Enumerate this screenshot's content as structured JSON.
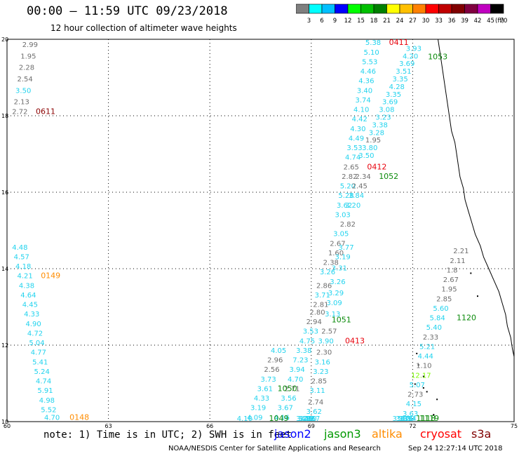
{
  "header": {
    "title": "00:00 – 11:59 UTC 09/23/2018",
    "subtitle": "12 hour collection of altimeter wave heights"
  },
  "colorbar": {
    "unit": "(ft)",
    "bins": [
      {
        "label": "3",
        "color": "#7f7f7f"
      },
      {
        "label": "6",
        "color": "#00ffff"
      },
      {
        "label": "9",
        "color": "#00bfff"
      },
      {
        "label": "12",
        "color": "#0000ff"
      },
      {
        "label": "15",
        "color": "#00ff00"
      },
      {
        "label": "18",
        "color": "#00c000"
      },
      {
        "label": "21",
        "color": "#008000"
      },
      {
        "label": "24",
        "color": "#ffff00"
      },
      {
        "label": "27",
        "color": "#ffc000"
      },
      {
        "label": "30",
        "color": "#ff8000"
      },
      {
        "label": "33",
        "color": "#ff0000"
      },
      {
        "label": "36",
        "color": "#c00000"
      },
      {
        "label": "39",
        "color": "#800000"
      },
      {
        "label": "42",
        "color": "#800040"
      },
      {
        "label": "45",
        "color": "#c000c0"
      },
      {
        "label": "70",
        "color": "#000000"
      }
    ]
  },
  "map": {
    "lon_range": [
      60,
      75
    ],
    "lat_range": [
      10,
      20
    ],
    "lon_ticks": [
      "60",
      "63",
      "66",
      "69",
      "72",
      "75"
    ],
    "lat_ticks": [
      "10",
      "12",
      "14",
      "16",
      "18",
      "20"
    ],
    "track_colors": {
      "gray": "#6e6e6e",
      "cyan": "#22d3ee",
      "red": "#e8000b",
      "green": "#0a8a0a",
      "orange": "#ff8c00",
      "maroon": "#8b0000",
      "lightgreen": "#7cfc00"
    },
    "labels": [
      {
        "t": "2.99",
        "lon": 60.45,
        "lat": 19.8,
        "c": "gray"
      },
      {
        "t": "1.95",
        "lon": 60.4,
        "lat": 19.5,
        "c": "gray"
      },
      {
        "t": "2.28",
        "lon": 60.35,
        "lat": 19.2,
        "c": "gray"
      },
      {
        "t": "2.54",
        "lon": 60.3,
        "lat": 18.9,
        "c": "gray"
      },
      {
        "t": "3.50",
        "lon": 60.25,
        "lat": 18.6,
        "c": "cyan"
      },
      {
        "t": "2.13",
        "lon": 60.2,
        "lat": 18.3,
        "c": "gray"
      },
      {
        "t": "2.72",
        "lon": 60.15,
        "lat": 18.05,
        "c": "gray"
      },
      {
        "t": "0611",
        "lon": 60.85,
        "lat": 18.05,
        "c": "maroon"
      },
      {
        "t": "4.48",
        "lon": 60.15,
        "lat": 14.5,
        "c": "cyan"
      },
      {
        "t": "4.57",
        "lon": 60.2,
        "lat": 14.25,
        "c": "cyan"
      },
      {
        "t": "4.18",
        "lon": 60.25,
        "lat": 14.0,
        "c": "cyan"
      },
      {
        "t": "4.21",
        "lon": 60.3,
        "lat": 13.75,
        "c": "cyan"
      },
      {
        "t": "0149",
        "lon": 61.0,
        "lat": 13.75,
        "c": "orange"
      },
      {
        "t": "4.38",
        "lon": 60.35,
        "lat": 13.5,
        "c": "cyan"
      },
      {
        "t": "4.64",
        "lon": 60.4,
        "lat": 13.25,
        "c": "cyan"
      },
      {
        "t": "4.45",
        "lon": 60.45,
        "lat": 13.0,
        "c": "cyan"
      },
      {
        "t": "4.33",
        "lon": 60.5,
        "lat": 12.75,
        "c": "cyan"
      },
      {
        "t": "4.90",
        "lon": 60.55,
        "lat": 12.5,
        "c": "cyan"
      },
      {
        "t": "4.72",
        "lon": 60.6,
        "lat": 12.25,
        "c": "cyan"
      },
      {
        "t": "5.04",
        "lon": 60.65,
        "lat": 12.0,
        "c": "cyan"
      },
      {
        "t": "4.77",
        "lon": 60.7,
        "lat": 11.75,
        "c": "cyan"
      },
      {
        "t": "5.41",
        "lon": 60.75,
        "lat": 11.5,
        "c": "cyan"
      },
      {
        "t": "5.24",
        "lon": 60.8,
        "lat": 11.25,
        "c": "cyan"
      },
      {
        "t": "4.74",
        "lon": 60.85,
        "lat": 11.0,
        "c": "cyan"
      },
      {
        "t": "5.91",
        "lon": 60.9,
        "lat": 10.75,
        "c": "cyan"
      },
      {
        "t": "4.98",
        "lon": 60.95,
        "lat": 10.5,
        "c": "cyan"
      },
      {
        "t": "5.52",
        "lon": 61.0,
        "lat": 10.25,
        "c": "cyan"
      },
      {
        "t": "4.70",
        "lon": 61.1,
        "lat": 10.05,
        "c": "cyan"
      },
      {
        "t": "0148",
        "lon": 61.85,
        "lat": 10.05,
        "c": "orange"
      },
      {
        "t": "5.38",
        "lon": 70.6,
        "lat": 19.85,
        "c": "cyan"
      },
      {
        "t": "0411",
        "lon": 71.3,
        "lat": 19.85,
        "c": "red"
      },
      {
        "t": "5.10",
        "lon": 70.55,
        "lat": 19.6,
        "c": "cyan"
      },
      {
        "t": "3.93",
        "lon": 71.8,
        "lat": 19.7,
        "c": "cyan"
      },
      {
        "t": "5.53",
        "lon": 70.5,
        "lat": 19.35,
        "c": "cyan"
      },
      {
        "t": "4.20",
        "lon": 71.7,
        "lat": 19.5,
        "c": "cyan"
      },
      {
        "t": "1053",
        "lon": 72.45,
        "lat": 19.48,
        "c": "green"
      },
      {
        "t": "4.46",
        "lon": 70.45,
        "lat": 19.1,
        "c": "cyan"
      },
      {
        "t": "3.69",
        "lon": 71.6,
        "lat": 19.3,
        "c": "cyan"
      },
      {
        "t": "4.36",
        "lon": 70.4,
        "lat": 18.85,
        "c": "cyan"
      },
      {
        "t": "3.51",
        "lon": 71.5,
        "lat": 19.1,
        "c": "cyan"
      },
      {
        "t": "3.40",
        "lon": 70.35,
        "lat": 18.6,
        "c": "cyan"
      },
      {
        "t": "3.35",
        "lon": 71.4,
        "lat": 18.9,
        "c": "cyan"
      },
      {
        "t": "3.74",
        "lon": 70.3,
        "lat": 18.35,
        "c": "cyan"
      },
      {
        "t": "4.28",
        "lon": 71.3,
        "lat": 18.7,
        "c": "cyan"
      },
      {
        "t": "4.10",
        "lon": 70.25,
        "lat": 18.1,
        "c": "cyan"
      },
      {
        "t": "3.35",
        "lon": 71.2,
        "lat": 18.5,
        "c": "cyan"
      },
      {
        "t": "4.42",
        "lon": 70.2,
        "lat": 17.85,
        "c": "cyan"
      },
      {
        "t": "3.69",
        "lon": 71.1,
        "lat": 18.3,
        "c": "cyan"
      },
      {
        "t": "4.30",
        "lon": 70.15,
        "lat": 17.6,
        "c": "cyan"
      },
      {
        "t": "3.08",
        "lon": 71.0,
        "lat": 18.1,
        "c": "cyan"
      },
      {
        "t": "4.49",
        "lon": 70.1,
        "lat": 17.35,
        "c": "cyan"
      },
      {
        "t": "3.23",
        "lon": 70.9,
        "lat": 17.9,
        "c": "cyan"
      },
      {
        "t": "3.53",
        "lon": 70.05,
        "lat": 17.1,
        "c": "cyan"
      },
      {
        "t": "3.38",
        "lon": 70.8,
        "lat": 17.7,
        "c": "cyan"
      },
      {
        "t": "4.74",
        "lon": 70.0,
        "lat": 16.85,
        "c": "cyan"
      },
      {
        "t": "3.28",
        "lon": 70.7,
        "lat": 17.5,
        "c": "cyan"
      },
      {
        "t": "1.95",
        "lon": 70.6,
        "lat": 17.3,
        "c": "gray"
      },
      {
        "t": "3.80",
        "lon": 70.5,
        "lat": 17.1,
        "c": "cyan"
      },
      {
        "t": "2.65",
        "lon": 69.95,
        "lat": 16.6,
        "c": "gray"
      },
      {
        "t": "0412",
        "lon": 70.65,
        "lat": 16.6,
        "c": "red"
      },
      {
        "t": "3.50",
        "lon": 70.4,
        "lat": 16.9,
        "c": "cyan"
      },
      {
        "t": "2.82",
        "lon": 69.9,
        "lat": 16.35,
        "c": "gray"
      },
      {
        "t": "2.34",
        "lon": 70.3,
        "lat": 16.35,
        "c": "gray"
      },
      {
        "t": "1052",
        "lon": 71.0,
        "lat": 16.35,
        "c": "green"
      },
      {
        "t": "5.20",
        "lon": 69.85,
        "lat": 16.1,
        "c": "cyan"
      },
      {
        "t": "2.45",
        "lon": 70.2,
        "lat": 16.1,
        "c": "gray"
      },
      {
        "t": "5.28",
        "lon": 69.8,
        "lat": 15.85,
        "c": "cyan"
      },
      {
        "t": "3.84",
        "lon": 70.1,
        "lat": 15.85,
        "c": "cyan"
      },
      {
        "t": "3.62",
        "lon": 69.75,
        "lat": 15.6,
        "c": "cyan"
      },
      {
        "t": "3.20",
        "lon": 70.0,
        "lat": 15.6,
        "c": "cyan"
      },
      {
        "t": "3.03",
        "lon": 69.7,
        "lat": 15.35,
        "c": "cyan"
      },
      {
        "t": "2.82",
        "lon": 69.85,
        "lat": 15.1,
        "c": "gray"
      },
      {
        "t": "3.05",
        "lon": 69.65,
        "lat": 14.85,
        "c": "cyan"
      },
      {
        "t": "2.67",
        "lon": 69.55,
        "lat": 14.6,
        "c": "gray"
      },
      {
        "t": "1.60",
        "lon": 69.5,
        "lat": 14.35,
        "c": "gray"
      },
      {
        "t": "3.77",
        "lon": 69.8,
        "lat": 14.5,
        "c": "cyan"
      },
      {
        "t": "2.38",
        "lon": 69.35,
        "lat": 14.1,
        "c": "gray"
      },
      {
        "t": "3.19",
        "lon": 69.7,
        "lat": 14.25,
        "c": "cyan"
      },
      {
        "t": "3.26",
        "lon": 69.25,
        "lat": 13.85,
        "c": "cyan"
      },
      {
        "t": "3.31",
        "lon": 69.6,
        "lat": 13.95,
        "c": "cyan"
      },
      {
        "t": "2.86",
        "lon": 69.15,
        "lat": 13.5,
        "c": "gray"
      },
      {
        "t": "3.26",
        "lon": 69.55,
        "lat": 13.6,
        "c": "cyan"
      },
      {
        "t": "3.71",
        "lon": 69.1,
        "lat": 13.25,
        "c": "cyan"
      },
      {
        "t": "3.29",
        "lon": 69.5,
        "lat": 13.3,
        "c": "cyan"
      },
      {
        "t": "2.81",
        "lon": 69.05,
        "lat": 13.0,
        "c": "gray"
      },
      {
        "t": "3.09",
        "lon": 69.45,
        "lat": 13.05,
        "c": "cyan"
      },
      {
        "t": "2.80",
        "lon": 68.95,
        "lat": 12.8,
        "c": "gray"
      },
      {
        "t": "3.13",
        "lon": 69.4,
        "lat": 12.75,
        "c": "cyan"
      },
      {
        "t": "2.94",
        "lon": 68.85,
        "lat": 12.55,
        "c": "gray"
      },
      {
        "t": "1051",
        "lon": 69.6,
        "lat": 12.6,
        "c": "green"
      },
      {
        "t": "3.53",
        "lon": 68.75,
        "lat": 12.3,
        "c": "cyan"
      },
      {
        "t": "2.57",
        "lon": 69.3,
        "lat": 12.3,
        "c": "gray"
      },
      {
        "t": "4.75",
        "lon": 68.65,
        "lat": 12.05,
        "c": "cyan"
      },
      {
        "t": "3.90",
        "lon": 69.2,
        "lat": 12.05,
        "c": "cyan"
      },
      {
        "t": "0413",
        "lon": 70.0,
        "lat": 12.05,
        "c": "red"
      },
      {
        "t": "3.38",
        "lon": 68.55,
        "lat": 11.8,
        "c": "cyan"
      },
      {
        "t": "2.30",
        "lon": 69.15,
        "lat": 11.75,
        "c": "gray"
      },
      {
        "t": "7.23",
        "lon": 68.45,
        "lat": 11.55,
        "c": "cyan"
      },
      {
        "t": "3.16",
        "lon": 69.1,
        "lat": 11.5,
        "c": "cyan"
      },
      {
        "t": "3.94",
        "lon": 68.35,
        "lat": 11.3,
        "c": "cyan"
      },
      {
        "t": "3.23",
        "lon": 69.05,
        "lat": 11.25,
        "c": "cyan"
      },
      {
        "t": "4.70",
        "lon": 68.3,
        "lat": 11.05,
        "c": "cyan"
      },
      {
        "t": "2.85",
        "lon": 69.0,
        "lat": 11.0,
        "c": "gray"
      },
      {
        "t": "2.71",
        "lon": 68.2,
        "lat": 10.8,
        "c": "gray"
      },
      {
        "t": "3.11",
        "lon": 68.95,
        "lat": 10.75,
        "c": "cyan"
      },
      {
        "t": "3.56",
        "lon": 68.1,
        "lat": 10.55,
        "c": "cyan"
      },
      {
        "t": "3.67",
        "lon": 68.0,
        "lat": 10.3,
        "c": "cyan"
      },
      {
        "t": "2.74",
        "lon": 68.9,
        "lat": 10.45,
        "c": "gray"
      },
      {
        "t": "4.16",
        "lon": 67.9,
        "lat": 10.05,
        "c": "cyan"
      },
      {
        "t": "3.62",
        "lon": 68.85,
        "lat": 10.2,
        "c": "cyan"
      }
    ],
    "labels_south": [
      {
        "t": "4.05",
        "lon": 67.8,
        "lat": 11.8,
        "c": "cyan"
      },
      {
        "t": "2.96",
        "lon": 67.7,
        "lat": 11.55,
        "c": "gray"
      },
      {
        "t": "2.56",
        "lon": 67.6,
        "lat": 11.3,
        "c": "gray"
      },
      {
        "t": "3.73",
        "lon": 67.5,
        "lat": 11.05,
        "c": "cyan"
      },
      {
        "t": "3.61",
        "lon": 67.4,
        "lat": 10.8,
        "c": "cyan"
      },
      {
        "t": "1050",
        "lon": 68.0,
        "lat": 10.8,
        "c": "green"
      },
      {
        "t": "4.33",
        "lon": 67.3,
        "lat": 10.55,
        "c": "cyan"
      },
      {
        "t": "3.19",
        "lon": 67.2,
        "lat": 10.3,
        "c": "cyan"
      },
      {
        "t": "4.09",
        "lon": 67.1,
        "lat": 10.05,
        "c": "cyan"
      }
    ],
    "labels_east": [
      {
        "t": "2.21",
        "lon": 73.2,
        "lat": 14.4,
        "c": "gray"
      },
      {
        "t": "2.11",
        "lon": 73.1,
        "lat": 14.15,
        "c": "gray"
      },
      {
        "t": "1.8",
        "lon": 73.0,
        "lat": 13.9,
        "c": "gray"
      },
      {
        "t": "2.67",
        "lon": 72.9,
        "lat": 13.65,
        "c": "gray"
      },
      {
        "t": "1.95",
        "lon": 72.85,
        "lat": 13.4,
        "c": "gray"
      },
      {
        "t": "2.85",
        "lon": 72.7,
        "lat": 13.15,
        "c": "gray"
      },
      {
        "t": "5.60",
        "lon": 72.6,
        "lat": 12.9,
        "c": "cyan"
      },
      {
        "t": "5.84",
        "lon": 72.5,
        "lat": 12.65,
        "c": "cyan"
      },
      {
        "t": "1120",
        "lon": 73.3,
        "lat": 12.65,
        "c": "green"
      },
      {
        "t": "5.40",
        "lon": 72.4,
        "lat": 12.4,
        "c": "cyan"
      },
      {
        "t": "2.33",
        "lon": 72.3,
        "lat": 12.15,
        "c": "gray"
      },
      {
        "t": "5.21",
        "lon": 72.2,
        "lat": 11.9,
        "c": "cyan"
      },
      {
        "t": "4.44",
        "lon": 72.15,
        "lat": 11.65,
        "c": "cyan"
      },
      {
        "t": "1.10",
        "lon": 72.1,
        "lat": 11.4,
        "c": "gray"
      },
      {
        "t": "12.17",
        "lon": 71.95,
        "lat": 11.15,
        "c": "lightgreen"
      },
      {
        "t": "5.07",
        "lon": 71.9,
        "lat": 10.9,
        "c": "cyan"
      },
      {
        "t": "2.73",
        "lon": 71.85,
        "lat": 10.65,
        "c": "gray"
      },
      {
        "t": "4.15",
        "lon": 71.8,
        "lat": 10.4,
        "c": "cyan"
      },
      {
        "t": "3.63",
        "lon": 71.7,
        "lat": 10.15,
        "c": "cyan"
      },
      {
        "t": "3.94",
        "lon": 71.65,
        "lat": 9.9,
        "c": "cyan"
      },
      {
        "t": "3.20",
        "lon": 71.6,
        "lat": 9.65,
        "c": "cyan"
      },
      {
        "t": "5.76",
        "lon": 71.55,
        "lat": 9.4,
        "c": "cyan"
      },
      {
        "t": "3.81",
        "lon": 71.5,
        "lat": 9.15,
        "c": "cyan"
      },
      {
        "t": "1119",
        "lon": 72.2,
        "lat": 9.15,
        "c": "green"
      },
      {
        "t": "3.13",
        "lon": 71.4,
        "lat": 8.95,
        "c": "cyan"
      },
      {
        "t": "1118",
        "lon": 72.1,
        "lat": 8.95,
        "c": "green"
      }
    ],
    "labels_bottom": [
      {
        "t": "4.10",
        "lon": 66.8,
        "lat": 8.95,
        "c": "cyan"
      },
      {
        "t": "1049",
        "lon": 67.75,
        "lat": 8.95,
        "c": "green"
      },
      {
        "t": "4.57",
        "lon": 68.8,
        "lat": 9.95,
        "c": "cyan"
      },
      {
        "t": "4.00",
        "lon": 68.7,
        "lat": 9.7,
        "c": "cyan"
      },
      {
        "t": "3.92",
        "lon": 68.65,
        "lat": 9.45,
        "c": "cyan"
      },
      {
        "t": "3.29",
        "lon": 68.6,
        "lat": 9.2,
        "c": "cyan"
      },
      {
        "t": "3.73",
        "lon": 68.55,
        "lat": 8.95,
        "c": "cyan"
      }
    ]
  },
  "note": {
    "text": "note: 1) Time is in UTC; 2) SWH is in feet",
    "missions": [
      {
        "name": "jason2",
        "color": "#0000ff"
      },
      {
        "name": "jason3",
        "color": "#009900"
      },
      {
        "name": "altika",
        "color": "#ff8c00"
      },
      {
        "name": "cryosat",
        "color": "#ff0000"
      },
      {
        "name": "s3a",
        "color": "#800000"
      }
    ]
  },
  "footer": {
    "credit": "NOAA/NESDIS Center for Satellite Applications and Research",
    "timestamp": "Sep 24 12:27:14 UTC 2018"
  }
}
